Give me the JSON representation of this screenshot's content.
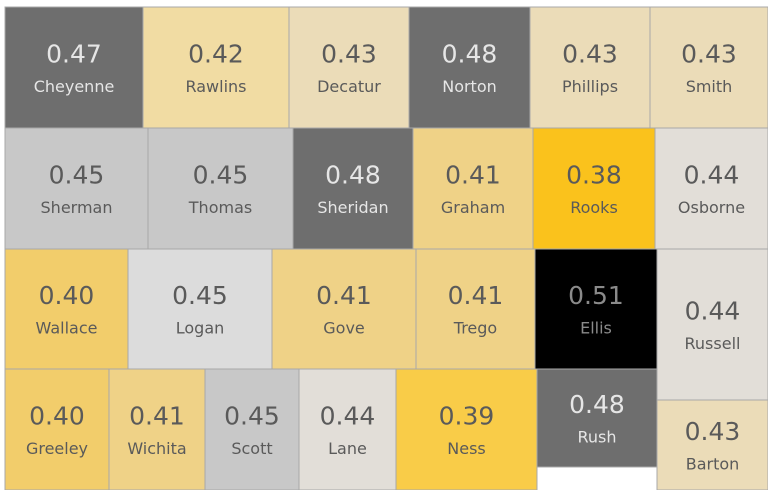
{
  "counties": [
    {
      "name": "Cheyenne",
      "value": 0.47,
      "color": "#6e6e6e"
    },
    {
      "name": "Rawlins",
      "value": 0.42,
      "color": "#f1dca3"
    },
    {
      "name": "Decatur",
      "value": 0.43,
      "color": "#ebdcb8"
    },
    {
      "name": "Norton",
      "value": 0.48,
      "color": "#6e6e6e"
    },
    {
      "name": "Phillips",
      "value": 0.43,
      "color": "#ebdcb8"
    },
    {
      "name": "Smith",
      "value": 0.43,
      "color": "#ebdcb8"
    },
    {
      "name": "Sherman",
      "value": 0.45,
      "color": "#c8c8c8"
    },
    {
      "name": "Thomas",
      "value": 0.45,
      "color": "#c8c8c8"
    },
    {
      "name": "Sheridan",
      "value": 0.48,
      "color": "#6e6e6e"
    },
    {
      "name": "Graham",
      "value": 0.41,
      "color": "#efd287"
    },
    {
      "name": "Rooks",
      "value": 0.38,
      "color": "#fac21c"
    },
    {
      "name": "Osborne",
      "value": 0.44,
      "color": "#e2ded8"
    },
    {
      "name": "Wallace",
      "value": 0.4,
      "value_label": "0.40",
      "color": "#f2cd6b"
    },
    {
      "name": "Logan",
      "value": 0.45,
      "color": "#dcdcdc"
    },
    {
      "name": "Gove",
      "value": 0.41,
      "color": "#efd287"
    },
    {
      "name": "Trego",
      "value": 0.41,
      "color": "#efd287"
    },
    {
      "name": "Ellis",
      "value": 0.51,
      "color": "#000000"
    },
    {
      "name": "Russell",
      "value": 0.44,
      "color": "#e2ded8"
    },
    {
      "name": "Greeley",
      "value": 0.4,
      "value_label": "0.40",
      "color": "#f2cd6b"
    },
    {
      "name": "Wichita",
      "value": 0.41,
      "color": "#efd287"
    },
    {
      "name": "Scott",
      "value": 0.45,
      "color": "#c8c8c8"
    },
    {
      "name": "Lane",
      "value": 0.44,
      "color": "#e2ded8"
    },
    {
      "name": "Ness",
      "value": 0.39,
      "color": "#f9cc48"
    },
    {
      "name": "Rush",
      "value": 0.48,
      "color": "#6e6e6e"
    },
    {
      "name": "Barton",
      "value": 0.43,
      "color": "#ebdcb8"
    }
  ]
}
